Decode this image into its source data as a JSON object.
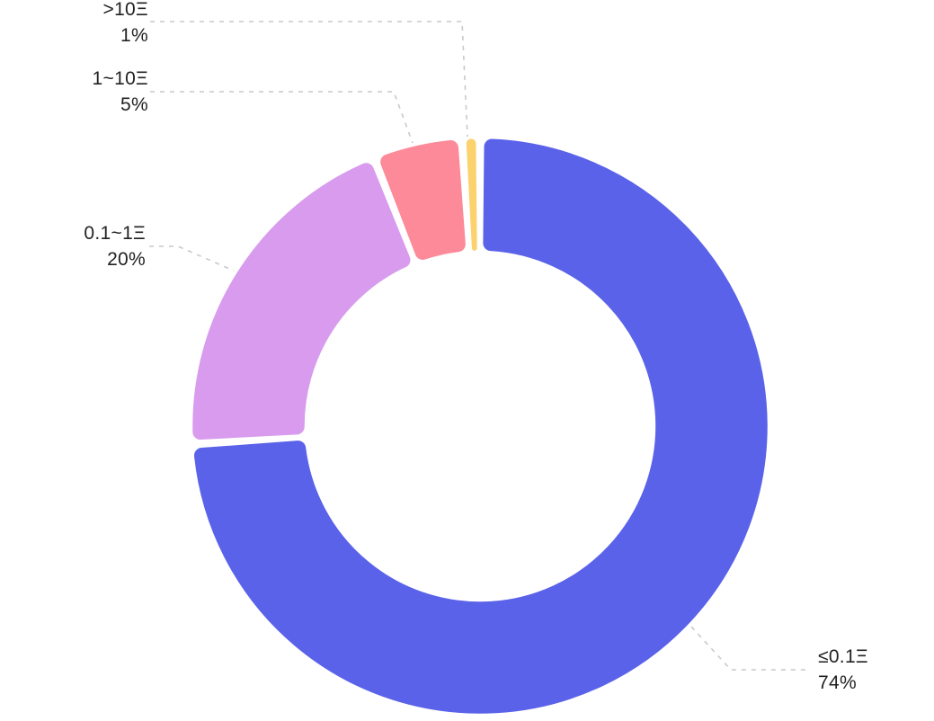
{
  "chart_data": {
    "type": "pie",
    "variant": "donut",
    "title": "",
    "direction": "clockwise",
    "start_angle": "top (12 o'clock)",
    "legend_position": "callout-labels",
    "categories": [
      "≤0.1Ξ",
      "0.1~1Ξ",
      "1~10Ξ",
      ">10Ξ"
    ],
    "values": [
      74,
      20,
      5,
      1
    ],
    "slices": [
      {
        "label": "≤0.1Ξ",
        "value": 74,
        "percent_label": "74%",
        "color": "#5a62e9"
      },
      {
        "label": "0.1~1Ξ",
        "value": 20,
        "percent_label": "20%",
        "color": "#d89bee"
      },
      {
        "label": "1~10Ξ",
        "value": 5,
        "percent_label": "5%",
        "color": "#fc8a99"
      },
      {
        "label": ">10Ξ",
        "value": 1,
        "percent_label": "1%",
        "color": "#fbd26e"
      }
    ]
  },
  "styles": {
    "background": "#ffffff",
    "label_text_color": "#222222",
    "leader_line_color": "#c9c9c9",
    "slice_border_color": "#ffffff"
  }
}
